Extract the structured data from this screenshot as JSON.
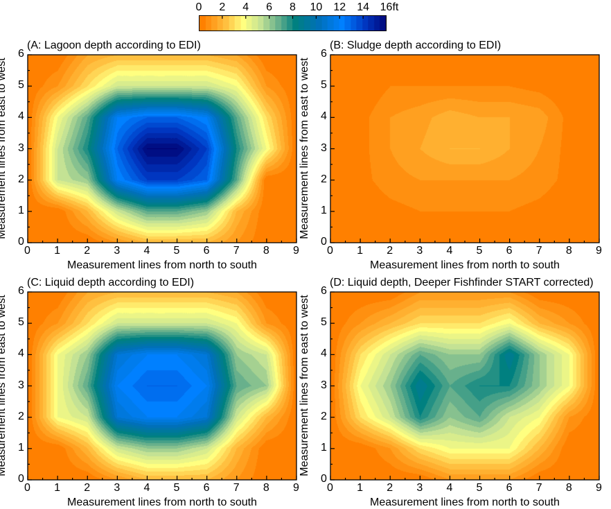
{
  "colorbar": {
    "labels": [
      "0",
      "2",
      "4",
      "6",
      "8",
      "10",
      "12",
      "14",
      "16ft"
    ],
    "values": [
      0,
      2,
      4,
      6,
      8,
      10,
      12,
      14,
      16
    ],
    "range": [
      0,
      16
    ],
    "stops": [
      [
        0,
        "#ff8000"
      ],
      [
        2,
        "#ffc040"
      ],
      [
        3.5,
        "#ffff80"
      ],
      [
        5,
        "#c4e294"
      ],
      [
        6.5,
        "#68b08c"
      ],
      [
        8,
        "#008080"
      ],
      [
        10,
        "#0070b8"
      ],
      [
        12,
        "#0080ff"
      ],
      [
        14,
        "#0036c0"
      ],
      [
        16,
        "#000070"
      ]
    ]
  },
  "chart_data": [
    {
      "type": "heatmap",
      "title": "(A: Lagoon depth according to EDI)",
      "xlabel": "Measurement lines from north to south",
      "ylabel": "Measurement lines from east to west",
      "xlim": [
        0,
        9
      ],
      "ylim": [
        0,
        6
      ],
      "xticks": [
        "0",
        "1",
        "2",
        "3",
        "4",
        "5",
        "6",
        "7",
        "8",
        "9"
      ],
      "yticks": [
        "0",
        "1",
        "2",
        "3",
        "4",
        "5",
        "6"
      ],
      "z_rows_y6_to_y0": [
        [
          0,
          0,
          1.5,
          2,
          2,
          2,
          2,
          1.5,
          0,
          0
        ],
        [
          0,
          1,
          3,
          5,
          5,
          5,
          5,
          4,
          1,
          0
        ],
        [
          0,
          4,
          7,
          12,
          13,
          13,
          12,
          7,
          3,
          0
        ],
        [
          0,
          5,
          8,
          13,
          16,
          16,
          14,
          8,
          4,
          0
        ],
        [
          0,
          5,
          6,
          12,
          14,
          14,
          13,
          7,
          0,
          0
        ],
        [
          0,
          0,
          2,
          5,
          7,
          7,
          6,
          2,
          0,
          0
        ],
        [
          0,
          0,
          0,
          1,
          2,
          2,
          2,
          1,
          0,
          0
        ]
      ]
    },
    {
      "type": "heatmap",
      "title": "(B: Sludge depth according to EDI)",
      "xlabel": "Measurement lines from north to south",
      "ylabel": "Measurement lines from east to west",
      "xlim": [
        0,
        9
      ],
      "ylim": [
        0,
        6
      ],
      "xticks": [
        "0",
        "1",
        "2",
        "3",
        "4",
        "5",
        "6",
        "7",
        "8",
        "9"
      ],
      "yticks": [
        "0",
        "1",
        "2",
        "3",
        "4",
        "5",
        "6"
      ],
      "z_rows_y6_to_y0": [
        [
          0,
          0,
          0,
          0,
          0,
          0,
          0,
          0,
          0,
          0
        ],
        [
          0,
          0,
          0.5,
          0.5,
          0.5,
          0.5,
          0.5,
          0.3,
          0,
          0
        ],
        [
          0,
          0.3,
          1,
          1.3,
          1.8,
          1.5,
          1.5,
          1.3,
          0.3,
          0
        ],
        [
          0,
          0.3,
          1,
          1.5,
          2,
          2,
          1.5,
          1,
          0.3,
          0
        ],
        [
          0,
          0.3,
          0.8,
          1,
          1,
          1,
          1,
          0.8,
          0.3,
          0
        ],
        [
          0,
          0,
          0.3,
          0.5,
          0.5,
          0.5,
          0.5,
          0.3,
          0,
          0
        ],
        [
          0,
          0,
          0,
          0,
          0,
          0,
          0,
          0,
          0,
          0
        ]
      ]
    },
    {
      "type": "heatmap",
      "title": "(C: Liquid depth according to EDI)",
      "xlabel": "Measurement lines from north to south",
      "ylabel": "Measurement lines from east to west",
      "xlim": [
        0,
        9
      ],
      "ylim": [
        0,
        6
      ],
      "xticks": [
        "0",
        "1",
        "2",
        "3",
        "4",
        "5",
        "6",
        "7",
        "8",
        "9"
      ],
      "yticks": [
        "0",
        "1",
        "2",
        "3",
        "4",
        "5",
        "6"
      ],
      "z_rows_y6_to_y0": [
        [
          0,
          0,
          1.5,
          2,
          2,
          2,
          2,
          1.5,
          0,
          0
        ],
        [
          0,
          1,
          3,
          5,
          5,
          5,
          5,
          4,
          1,
          0
        ],
        [
          0,
          4,
          6,
          11,
          12,
          12,
          11,
          6,
          5,
          0
        ],
        [
          0,
          4,
          7,
          12,
          13,
          13,
          12,
          7,
          6,
          0
        ],
        [
          0,
          4,
          5,
          11,
          12,
          12,
          11,
          5,
          2,
          0
        ],
        [
          0,
          0,
          2,
          5,
          6,
          6,
          5,
          2,
          0,
          0
        ],
        [
          0,
          0,
          0,
          1,
          2,
          2,
          2,
          1,
          0,
          0
        ]
      ]
    },
    {
      "type": "heatmap",
      "title": "(D: Liquid depth, Deeper Fishfinder START corrected)",
      "xlabel": "Measurement lines from north to south",
      "ylabel": "Measurement lines from east to west",
      "xlim": [
        0,
        9
      ],
      "ylim": [
        0,
        6
      ],
      "xticks": [
        "0",
        "1",
        "2",
        "3",
        "4",
        "5",
        "6",
        "7",
        "8",
        "9"
      ],
      "yticks": [
        "0",
        "1",
        "2",
        "3",
        "4",
        "5",
        "6"
      ],
      "z_rows_y6_to_y0": [
        [
          0,
          0,
          0,
          1,
          1,
          1,
          1,
          0,
          0,
          0
        ],
        [
          0,
          1,
          2,
          3,
          3,
          3,
          4,
          2,
          1,
          0
        ],
        [
          0,
          3,
          5,
          7,
          6,
          6,
          9,
          6,
          4,
          0
        ],
        [
          0,
          4,
          6,
          9,
          7,
          8,
          8,
          6,
          4,
          0
        ],
        [
          0,
          3,
          5,
          8,
          6,
          7,
          5,
          4,
          1,
          0
        ],
        [
          0,
          0,
          1,
          3,
          4,
          4,
          4,
          2,
          0,
          0
        ],
        [
          0,
          0,
          0,
          0,
          1,
          1,
          1,
          0,
          0,
          0
        ]
      ]
    }
  ]
}
